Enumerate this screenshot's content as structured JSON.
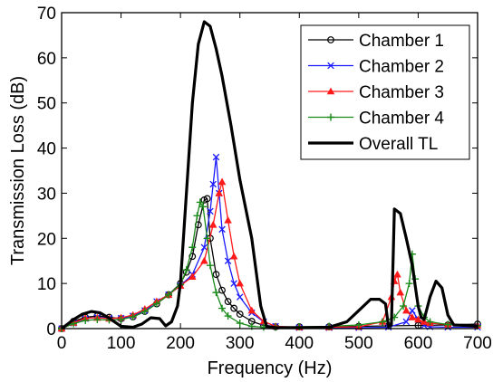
{
  "chart_data": {
    "type": "line",
    "xlabel": "Frequency (Hz)",
    "ylabel": "Transmission Loss (dB)",
    "xlim": [
      0,
      700
    ],
    "ylim": [
      0,
      70
    ],
    "xticks": [
      "0",
      "100",
      "200",
      "300",
      "400",
      "500",
      "600",
      "700"
    ],
    "yticks": [
      "0",
      "10",
      "20",
      "30",
      "40",
      "50",
      "60",
      "70"
    ],
    "xtick_values": [
      0,
      100,
      200,
      300,
      400,
      500,
      600,
      700
    ],
    "ytick_values": [
      0,
      10,
      20,
      30,
      40,
      50,
      60,
      70
    ],
    "grid": false,
    "legend_position": "top-right",
    "series": [
      {
        "name": "Chamber 1",
        "color": "#000000",
        "marker": "circle",
        "x": [
          0,
          20,
          40,
          60,
          80,
          100,
          120,
          140,
          160,
          180,
          200,
          210,
          220,
          230,
          240,
          245,
          250,
          260,
          270,
          280,
          290,
          300,
          320,
          340,
          360,
          400,
          450,
          500,
          550,
          600,
          650,
          700
        ],
        "y": [
          0,
          1.6,
          2.5,
          2.8,
          2.5,
          2.2,
          2.6,
          3.8,
          5.5,
          7.5,
          10,
          12.5,
          16,
          23,
          28.5,
          28.8,
          20,
          12,
          8.5,
          6,
          4.5,
          3.2,
          1.6,
          0.7,
          0.4,
          0.4,
          0.4,
          0.5,
          0.6,
          0.7,
          0.8,
          1
        ]
      },
      {
        "name": "Chamber 2",
        "color": "#1a1aff",
        "marker": "x",
        "x": [
          0,
          20,
          40,
          60,
          80,
          100,
          120,
          140,
          160,
          180,
          200,
          220,
          240,
          250,
          255,
          260,
          265,
          270,
          280,
          290,
          300,
          320,
          340,
          360,
          400,
          450,
          500,
          550,
          580,
          590,
          600,
          610,
          620,
          650,
          700
        ],
        "y": [
          0,
          1.2,
          2.2,
          2.5,
          2.3,
          2.3,
          2.8,
          4,
          6,
          7.5,
          9.5,
          12,
          18,
          26,
          32,
          38,
          30,
          22,
          15,
          10,
          7,
          3.5,
          1.5,
          0.5,
          0.2,
          0.2,
          0.2,
          0.3,
          1.5,
          4,
          2,
          0.7,
          0.4,
          0.3,
          0.3
        ]
      },
      {
        "name": "Chamber 3",
        "color": "#ff1a1a",
        "marker": "triangle",
        "x": [
          0,
          20,
          40,
          60,
          80,
          100,
          120,
          140,
          160,
          180,
          200,
          220,
          240,
          255,
          265,
          270,
          280,
          290,
          300,
          320,
          340,
          360,
          400,
          450,
          500,
          540,
          555,
          560,
          565,
          570,
          580,
          590,
          600,
          610,
          620,
          650,
          700
        ],
        "y": [
          0,
          1.3,
          2.3,
          2.4,
          2.2,
          2.4,
          3,
          4.3,
          6,
          7.5,
          9.5,
          11.5,
          15,
          23,
          30,
          32.5,
          24,
          16,
          10,
          4,
          1.6,
          0.5,
          0.3,
          0.3,
          0.4,
          1.5,
          7,
          10.5,
          12,
          8,
          4,
          2.5,
          2,
          1.5,
          1.2,
          0.9,
          0.7
        ]
      },
      {
        "name": "Chamber 4",
        "color": "#1a8a1a",
        "marker": "plus",
        "x": [
          0,
          20,
          40,
          60,
          80,
          100,
          120,
          140,
          160,
          180,
          200,
          210,
          220,
          228,
          233,
          238,
          245,
          250,
          260,
          270,
          280,
          300,
          320,
          340,
          360,
          400,
          450,
          500,
          540,
          560,
          575,
          585,
          590,
          595,
          600,
          610,
          620,
          650,
          700
        ],
        "y": [
          0,
          1.1,
          1.8,
          2,
          1.9,
          2,
          2.6,
          3.8,
          5.5,
          7.5,
          9.8,
          13,
          18,
          25,
          28,
          27,
          20,
          14,
          8,
          4.5,
          2.8,
          1.2,
          0.5,
          0.3,
          0.3,
          0.4,
          0.5,
          0.8,
          1.5,
          2.5,
          5,
          10,
          16.5,
          11,
          5,
          2.5,
          1.5,
          0.9,
          0.6
        ]
      },
      {
        "name": "Overall TL",
        "color": "#000000",
        "marker": "none",
        "x": [
          0,
          10,
          20,
          35,
          50,
          65,
          80,
          100,
          120,
          135,
          150,
          165,
          175,
          185,
          195,
          200,
          210,
          220,
          230,
          240,
          250,
          260,
          270,
          285,
          300,
          320,
          335,
          345,
          360,
          400,
          450,
          480,
          500,
          520,
          535,
          545,
          550,
          555,
          560,
          570,
          580,
          590,
          600,
          605,
          610,
          620,
          630,
          640,
          650,
          660,
          680,
          700
        ],
        "y": [
          0,
          1,
          2,
          3.2,
          3.8,
          3.5,
          2.3,
          0.5,
          0.3,
          1,
          2.4,
          2.2,
          0.6,
          1.5,
          5,
          10,
          30,
          50,
          63,
          68,
          67,
          62,
          56,
          45,
          33,
          20,
          5,
          0.5,
          0.2,
          0.2,
          0.3,
          1.5,
          4,
          6.5,
          6.5,
          5.5,
          0.5,
          0.8,
          26.5,
          25.5,
          20,
          14,
          5,
          2.5,
          2,
          7,
          10.5,
          9,
          3,
          0.8,
          0.7,
          0.5
        ]
      }
    ]
  }
}
